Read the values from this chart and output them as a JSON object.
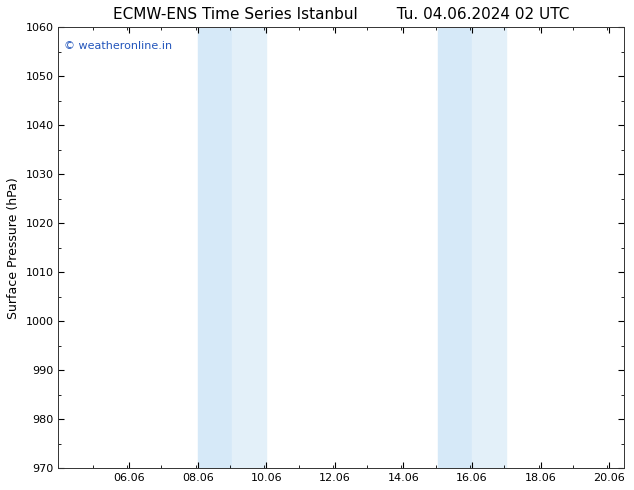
{
  "title_left": "ECMW-ENS Time Series Istanbul",
  "title_right": "Tu. 04.06.2024 02 UTC",
  "ylabel": "Surface Pressure (hPa)",
  "ylim": [
    970,
    1060
  ],
  "yticks": [
    970,
    980,
    990,
    1000,
    1010,
    1020,
    1030,
    1040,
    1050,
    1060
  ],
  "xlim_start": 4.0,
  "xlim_end": 20.5,
  "xtick_positions": [
    6.06,
    8.06,
    10.06,
    12.06,
    14.06,
    16.06,
    18.06,
    20.06
  ],
  "xtick_labels": [
    "06.06",
    "08.06",
    "10.06",
    "12.06",
    "14.06",
    "16.06",
    "18.06",
    "20.06"
  ],
  "shaded_bands": [
    {
      "x_start": 8.06,
      "x_end": 9.06,
      "color": "#d6e9f8"
    },
    {
      "x_start": 9.06,
      "x_end": 10.06,
      "color": "#e3f0f9"
    },
    {
      "x_start": 15.06,
      "x_end": 16.06,
      "color": "#d6e9f8"
    },
    {
      "x_start": 16.06,
      "x_end": 17.06,
      "color": "#e3f0f9"
    }
  ],
  "background_color": "#ffffff",
  "plot_bg_color": "#ffffff",
  "watermark_text": "© weatheronline.in",
  "watermark_color": "#2255bb",
  "title_fontsize": 11,
  "tick_fontsize": 8,
  "ylabel_fontsize": 9
}
